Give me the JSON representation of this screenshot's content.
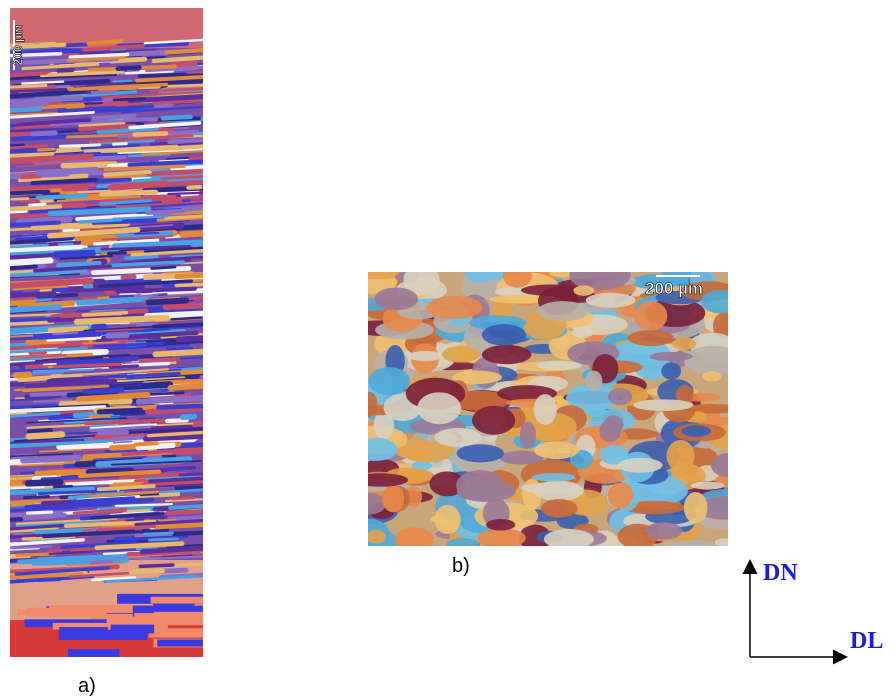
{
  "figure": {
    "panels": [
      {
        "label": "a)",
        "scale_bar": "200 µm"
      },
      {
        "label": "b)",
        "scale_bar": "200 µm"
      }
    ],
    "axes": {
      "vertical": "DN",
      "horizontal": "DL"
    }
  }
}
